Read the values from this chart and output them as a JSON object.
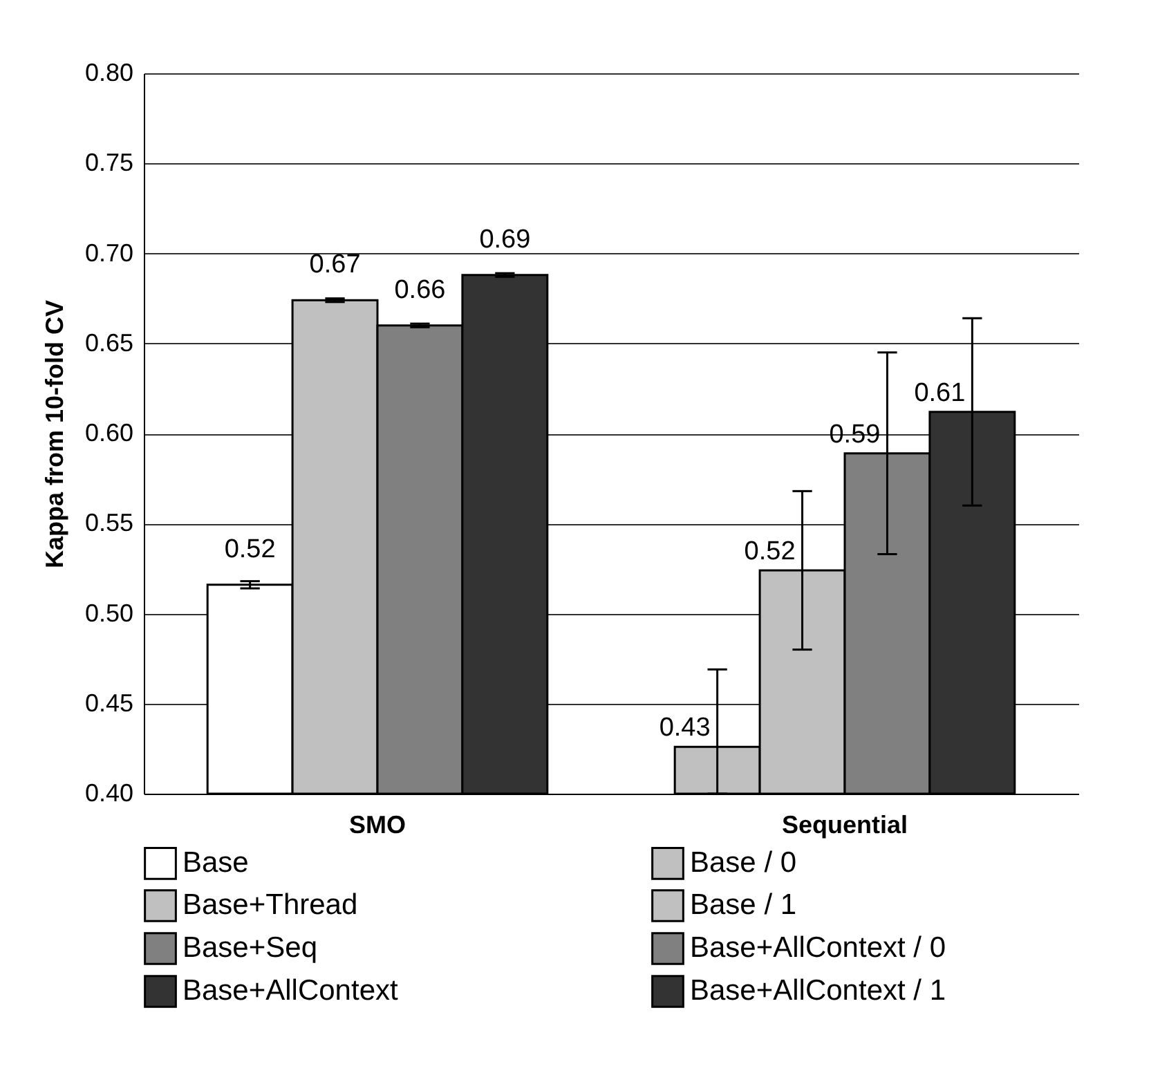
{
  "chart_data": {
    "type": "bar",
    "ylabel": "Kappa from 10-fold CV",
    "categories": [
      "SMO",
      "Sequential"
    ],
    "series": [
      {
        "name": "Base",
        "color": "#ffffff",
        "values": [
          0.516,
          null
        ],
        "errors": [
          0.002,
          null
        ],
        "value_labels": [
          "0.52",
          null
        ]
      },
      {
        "name": "Base+Thread",
        "color": "#c0c0c0",
        "values": [
          0.674,
          null
        ],
        "errors": [
          0.001,
          null
        ],
        "value_labels": [
          "0.67",
          null
        ]
      },
      {
        "name": "Base+Seq",
        "color": "#808080",
        "values": [
          0.66,
          null
        ],
        "errors": [
          0.001,
          null
        ],
        "value_labels": [
          "0.66",
          null
        ]
      },
      {
        "name": "Base+AllContext",
        "color": "#333333",
        "values": [
          0.688,
          null
        ],
        "errors": [
          0.001,
          null
        ],
        "value_labels": [
          "0.69",
          null
        ]
      },
      {
        "name": "Base / 0",
        "color": "#c0c0c0",
        "values": [
          null,
          0.426
        ],
        "errors": [
          null,
          [
            0.4,
            0.469
          ]
        ],
        "value_labels": [
          null,
          "0.43"
        ]
      },
      {
        "name": "Base / 1",
        "color": "#c0c0c0",
        "values": [
          null,
          0.524
        ],
        "errors": [
          null,
          0.044
        ],
        "value_labels": [
          null,
          "0.52"
        ]
      },
      {
        "name": "Base+AllContext / 0",
        "color": "#808080",
        "values": [
          null,
          0.589
        ],
        "errors": [
          null,
          0.056
        ],
        "value_labels": [
          null,
          "0.59"
        ]
      },
      {
        "name": "Base+AllContext / 1",
        "color": "#333333",
        "values": [
          null,
          0.612
        ],
        "errors": [
          null,
          0.052
        ],
        "value_labels": [
          null,
          "0.61"
        ]
      }
    ],
    "ylim": [
      0.4,
      0.8
    ],
    "yticks": [
      {
        "value": 0.4,
        "label": "0.40"
      },
      {
        "value": 0.45,
        "label": "0.45"
      },
      {
        "value": 0.5,
        "label": "0.50"
      },
      {
        "value": 0.55,
        "label": "0.55"
      },
      {
        "value": 0.6,
        "label": "0.60"
      },
      {
        "value": 0.65,
        "label": "0.65"
      },
      {
        "value": 0.7,
        "label": "0.70"
      },
      {
        "value": 0.75,
        "label": "0.75"
      },
      {
        "value": 0.8,
        "label": "0.80"
      }
    ],
    "grid": "y",
    "legend": "bottom"
  }
}
